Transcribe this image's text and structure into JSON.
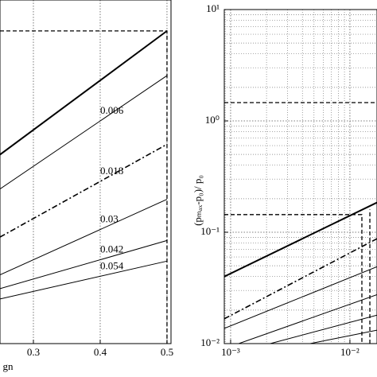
{
  "chart_data": [
    {
      "type": "line",
      "x_label": "gn",
      "xlim": [
        0.25,
        0.506
      ],
      "xticks": [
        0.3,
        0.4,
        0.5
      ],
      "ylim": [
        0,
        1
      ],
      "grid": true,
      "series": [
        {
          "color": "#000000",
          "style": "thick",
          "x": [
            0.25,
            0.5
          ],
          "values": [
            0.55,
            0.91
          ]
        },
        {
          "name": "0.006",
          "color": "#000000",
          "style": "solid",
          "x": [
            0.25,
            0.5
          ],
          "values": [
            0.45,
            0.78
          ]
        },
        {
          "name": "0.018",
          "color": "#000000",
          "style": "dashdot",
          "x": [
            0.25,
            0.5
          ],
          "values": [
            0.31,
            0.58
          ]
        },
        {
          "name": "0.03",
          "color": "#000000",
          "style": "solid",
          "x": [
            0.25,
            0.5
          ],
          "values": [
            0.2,
            0.42
          ]
        },
        {
          "name": "0.042",
          "color": "#000000",
          "style": "solid",
          "x": [
            0.25,
            0.5
          ],
          "values": [
            0.16,
            0.3
          ]
        },
        {
          "name": "0.054",
          "color": "#000000",
          "style": "solid",
          "x": [
            0.25,
            0.5
          ],
          "values": [
            0.13,
            0.24
          ]
        },
        {
          "color": "#000000",
          "style": "dashed",
          "x": [
            0.25,
            0.5,
            0.5
          ],
          "values": [
            0.91,
            0.91,
            0
          ]
        }
      ]
    },
    {
      "type": "line",
      "y_label": "(pₘₐₓ-p₀)/ p₀",
      "log_x": true,
      "log_y": true,
      "grid": true,
      "xlim": [
        0.000885,
        0.01687
      ],
      "xticks": [
        {
          "value": 0.001,
          "label": "10⁻³"
        },
        {
          "value": 0.01,
          "label": "10⁻²"
        }
      ],
      "ylim": [
        0.01,
        10
      ],
      "yticks": [
        {
          "value": 0.01,
          "label": "10⁻²"
        },
        {
          "value": 0.1,
          "label": "10⁻¹"
        },
        {
          "value": 1,
          "label": "10⁰"
        },
        {
          "value": 10,
          "label": "10¹"
        }
      ],
      "series": [
        {
          "color": "#000000",
          "style": "thick",
          "x": [
            0.000885,
            0.01687
          ],
          "values": [
            0.04,
            0.185
          ]
        },
        {
          "color": "#000000",
          "style": "dashdot",
          "x": [
            0.000885,
            0.01687
          ],
          "values": [
            0.0167,
            0.0875
          ]
        },
        {
          "color": "#000000",
          "style": "solid",
          "x": [
            0.000885,
            0.01687
          ],
          "values": [
            0.0137,
            0.049
          ]
        },
        {
          "color": "#000000",
          "style": "solid",
          "x": [
            0.00117,
            0.01687
          ],
          "values": [
            0.01,
            0.0275
          ]
        },
        {
          "color": "#000000",
          "style": "solid",
          "x": [
            0.00215,
            0.01687
          ],
          "values": [
            0.01,
            0.018
          ]
        },
        {
          "color": "#000000",
          "style": "solid",
          "x": [
            0.00464,
            0.01687
          ],
          "values": [
            0.01,
            0.0132
          ]
        },
        {
          "color": "#000000",
          "style": "dashed",
          "x": [
            0.000885,
            0.01687
          ],
          "values": [
            1.46,
            1.46
          ]
        },
        {
          "color": "#000000",
          "style": "dashed",
          "x": [
            0.000885,
            0.0126,
            0.0126
          ],
          "values": [
            0.144,
            0.144,
            0.01
          ]
        },
        {
          "color": "#000000",
          "style": "dashed",
          "x": [
            0.0147,
            0.0147
          ],
          "values": [
            0.01,
            0.16
          ]
        }
      ]
    }
  ]
}
